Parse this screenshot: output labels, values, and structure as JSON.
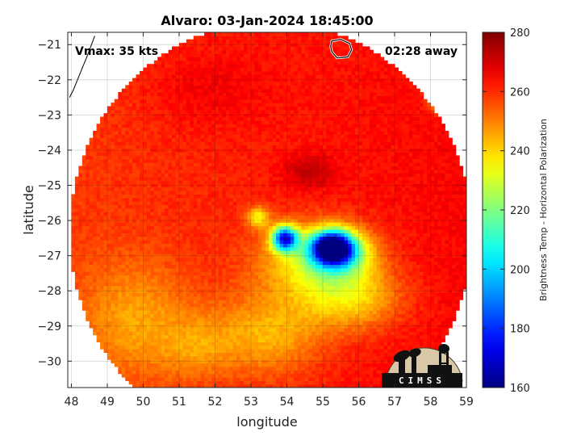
{
  "chart_data": {
    "type": "heatmap",
    "title": "Alvaro: 03-Jan-2024 18:45:00",
    "xlabel": "longitude",
    "ylabel": "latitude",
    "xlim": [
      47.9,
      59
    ],
    "ylim": [
      -30.75,
      -20.65
    ],
    "xticks": [
      48,
      49,
      50,
      51,
      52,
      53,
      54,
      55,
      56,
      57,
      58,
      59
    ],
    "yticks": [
      -21,
      -22,
      -23,
      -24,
      -25,
      -26,
      -27,
      -28,
      -29,
      -30
    ],
    "grid": true,
    "swath": {
      "center_lon": 53.55,
      "center_lat": -26.35,
      "radius_lon": 5.6,
      "radius_lat": 6.0
    },
    "colorbar": {
      "label": "Brightness Temp - Horizontal Polarization",
      "min": 160,
      "max": 280,
      "ticks": [
        280,
        260,
        240,
        220,
        200,
        180,
        160
      ],
      "colormap": "jet"
    },
    "background_value": 262,
    "features": [
      {
        "lon": 55.25,
        "lat": -26.75,
        "sx": 0.55,
        "sy": 0.45,
        "amp": -90
      },
      {
        "lon": 55.5,
        "lat": -26.9,
        "sx": 0.8,
        "sy": 0.6,
        "amp": -35
      },
      {
        "lon": 53.95,
        "lat": -26.5,
        "sx": 0.35,
        "sy": 0.35,
        "amp": -80
      },
      {
        "lon": 54.8,
        "lat": -27.1,
        "sx": 1.5,
        "sy": 1.0,
        "amp": -28
      },
      {
        "lon": 53.2,
        "lat": -25.9,
        "sx": 0.3,
        "sy": 0.3,
        "amp": -25
      },
      {
        "lon": 55.8,
        "lat": -28.2,
        "sx": 1.4,
        "sy": 0.9,
        "amp": -22
      },
      {
        "lon": 53.5,
        "lat": -29.2,
        "sx": 1.5,
        "sy": 1.2,
        "amp": -18
      },
      {
        "lon": 49.8,
        "lat": -28.8,
        "sx": 1.6,
        "sy": 1.7,
        "amp": -14
      },
      {
        "lon": 51.5,
        "lat": -29.6,
        "sx": 1.0,
        "sy": 0.9,
        "amp": -10
      },
      {
        "lon": 58.2,
        "lat": -22.6,
        "sx": 0.3,
        "sy": 0.3,
        "amp": -22
      },
      {
        "lon": 54.6,
        "lat": -24.6,
        "sx": 0.7,
        "sy": 0.5,
        "amp": 10
      },
      {
        "lon": 51.8,
        "lat": -22.2,
        "sx": 1.8,
        "sy": 1.2,
        "amp": 5
      }
    ],
    "coastline_island": [
      [
        55.25,
        -20.9
      ],
      [
        55.5,
        -20.85
      ],
      [
        55.75,
        -20.97
      ],
      [
        55.8,
        -21.15
      ],
      [
        55.7,
        -21.35
      ],
      [
        55.4,
        -21.38
      ],
      [
        55.25,
        -21.2
      ],
      [
        55.22,
        -21.05
      ],
      [
        55.25,
        -20.9
      ]
    ],
    "coastline_mainland": [
      [
        48.65,
        -20.75
      ],
      [
        48.45,
        -21.3
      ],
      [
        48.25,
        -21.8
      ],
      [
        48.05,
        -22.3
      ],
      [
        47.95,
        -22.5
      ]
    ],
    "annotations": {
      "vmax": "Vmax: 35 kts",
      "time_away": "02:28 away"
    }
  },
  "logo": {
    "text": "CIMSS"
  }
}
